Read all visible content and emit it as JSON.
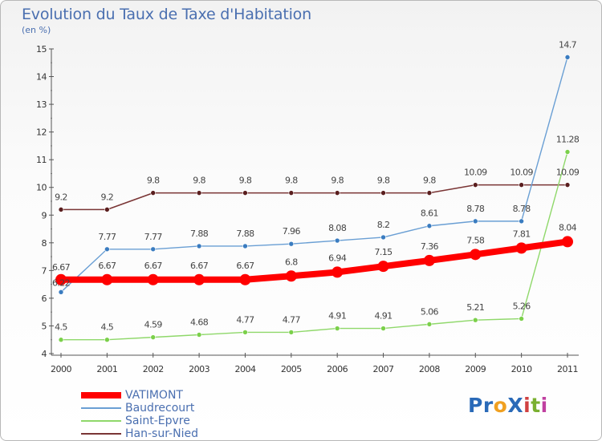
{
  "header": {
    "title": "Evolution du Taux de Taxe d'Habitation",
    "subtitle": "(en %)"
  },
  "logo": {
    "text": "ProXiti",
    "letters": [
      {
        "ch": "P",
        "color": "#2a6ab8"
      },
      {
        "ch": "r",
        "color": "#2a6ab8"
      },
      {
        "ch": "o",
        "color": "#f0a020"
      },
      {
        "ch": "X",
        "color": "#2a6ab8"
      },
      {
        "ch": "i",
        "color": "#d04040"
      },
      {
        "ch": "t",
        "color": "#7ab030"
      },
      {
        "ch": "i",
        "color": "#c040a0"
      }
    ]
  },
  "chart_data": {
    "type": "line",
    "title": "Evolution du Taux de Taxe d'Habitation",
    "subtitle": "(en %)",
    "xlabel": "",
    "ylabel": "",
    "x": [
      "2000",
      "2001",
      "2002",
      "2003",
      "2004",
      "2005",
      "2006",
      "2007",
      "2008",
      "2009",
      "2010",
      "2011"
    ],
    "ylim": [
      4,
      15
    ],
    "yticks": [
      "4",
      "5",
      "6",
      "7",
      "8",
      "9",
      "10",
      "11",
      "12",
      "13",
      "14",
      "15"
    ],
    "grid": false,
    "legend_position": "bottom-left",
    "series": [
      {
        "name": "VATIMONT",
        "color": "#ff0000",
        "values": [
          6.67,
          6.67,
          6.67,
          6.67,
          6.67,
          6.8,
          6.94,
          7.15,
          7.36,
          7.58,
          7.81,
          8.04
        ],
        "labels": [
          "6.67",
          "6.67",
          "6.67",
          "6.67",
          "6.67",
          "6.8",
          "6.94",
          "7.15",
          "7.36",
          "7.58",
          "7.81",
          "8.04"
        ]
      },
      {
        "name": "Baudrecourt",
        "color": "#6a9fd4",
        "values": [
          6.22,
          7.77,
          7.77,
          7.88,
          7.88,
          7.96,
          8.08,
          8.2,
          8.61,
          8.78,
          8.78,
          14.7
        ],
        "labels": [
          "6.22",
          "7.77",
          "7.77",
          "7.88",
          "7.88",
          "7.96",
          "8.08",
          "8.2",
          "8.61",
          "8.78",
          "8.78",
          "14.7"
        ]
      },
      {
        "name": "Saint-Epvre",
        "color": "#8fd86a",
        "values": [
          4.5,
          4.5,
          4.59,
          4.68,
          4.77,
          4.77,
          4.91,
          4.91,
          5.06,
          5.21,
          5.26,
          11.28
        ],
        "labels": [
          "4.5",
          "4.5",
          "4.59",
          "4.68",
          "4.77",
          "4.77",
          "4.91",
          "4.91",
          "5.06",
          "5.21",
          "5.26",
          "11.28"
        ]
      },
      {
        "name": "Han-sur-Nied",
        "color": "#7a3535",
        "values": [
          9.2,
          9.2,
          9.8,
          9.8,
          9.8,
          9.8,
          9.8,
          9.8,
          9.8,
          10.09,
          10.09,
          10.09
        ],
        "labels": [
          "9.2",
          "9.2",
          "9.8",
          "9.8",
          "9.8",
          "9.8",
          "9.8",
          "9.8",
          "9.8",
          "10.09",
          "10.09",
          "10.09"
        ]
      }
    ]
  }
}
